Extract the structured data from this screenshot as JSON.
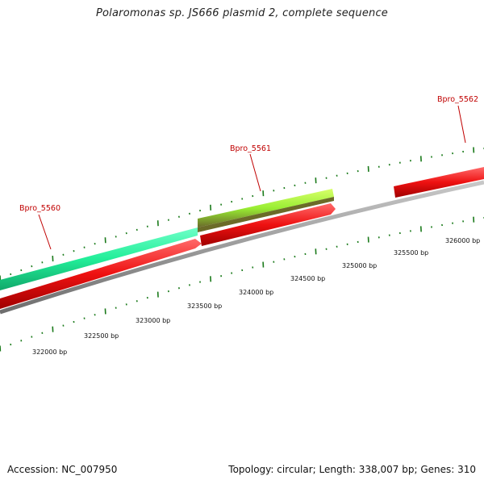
{
  "title": "Polaromonas sp. JS666 plasmid 2, complete sequence",
  "accession": "Accession: NC_007950",
  "summary": "Topology: circular; Length: 338,007 bp; Genes: 310",
  "genes": [
    {
      "label": "Bpro_5560",
      "color": "#22ee99",
      "strand": "forward"
    },
    {
      "label": "Bpro_5561",
      "color": "#99ee33",
      "strand": "forward"
    },
    {
      "label": "Bpro_5562",
      "color": "#ee1111",
      "strand": "forward"
    }
  ],
  "position_labels": [
    "322000 bp",
    "322500 bp",
    "323000 bp",
    "323500 bp",
    "324000 bp",
    "324500 bp",
    "325000 bp",
    "325500 bp",
    "326000 bp"
  ],
  "colors": {
    "forward_cds": "#ee1111",
    "backbone": "#888888",
    "tick": "#1a7a1a",
    "label_red": "#c00000"
  }
}
